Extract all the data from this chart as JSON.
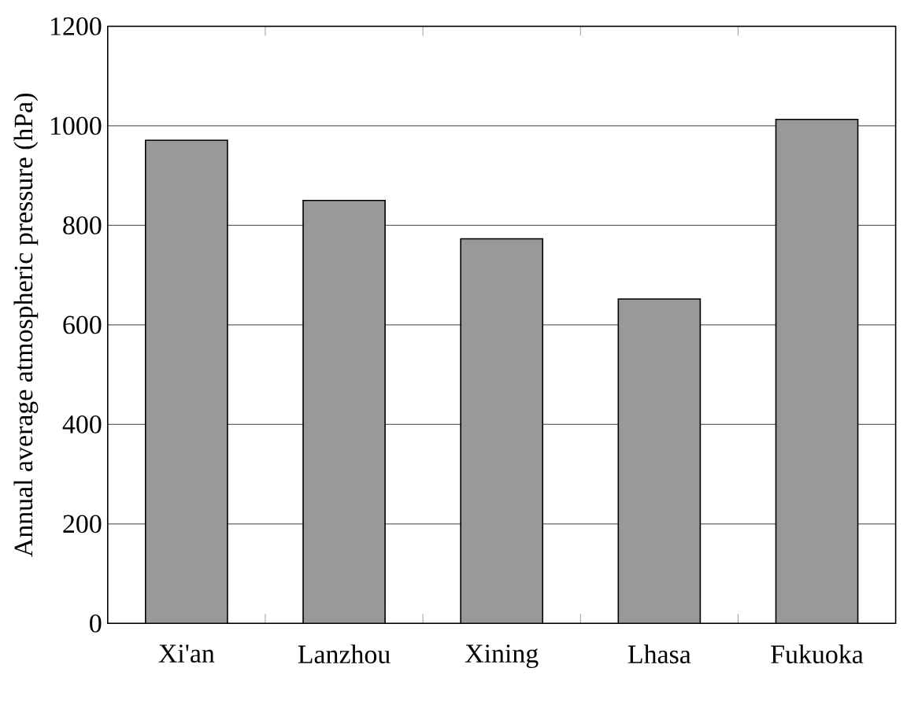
{
  "chart_data": {
    "type": "bar",
    "ylabel": "Annual average atmospheric pressure (hPa)",
    "categories": [
      "Xi'an",
      "Lanzhou",
      "Xining",
      "Lhasa",
      "Fukuoka"
    ],
    "values": [
      971,
      850,
      773,
      652,
      1013
    ],
    "color": "#999999",
    "ylim": [
      0,
      1200
    ],
    "yticks": [
      0,
      200,
      400,
      600,
      800,
      1000,
      1200
    ],
    "grid": "y"
  }
}
